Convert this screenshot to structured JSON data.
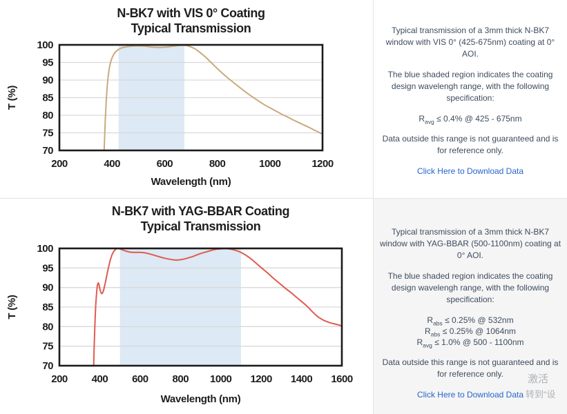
{
  "chart_data": [
    {
      "type": "line",
      "title": "N-BK7 with VIS 0° Coating",
      "subtitle": "Typical Transmission",
      "xlabel": "Wavelength (nm)",
      "ylabel": "T (%)",
      "xlim": [
        200,
        1200
      ],
      "ylim": [
        70,
        100
      ],
      "xticks": [
        200,
        400,
        600,
        800,
        1000,
        1200
      ],
      "yticks": [
        100,
        95,
        90,
        85,
        80,
        75,
        70
      ],
      "grid": "horizontal",
      "legend": "none",
      "line_color": "#c9a97c",
      "shaded_region": {
        "x0": 425,
        "x1": 675,
        "color": "#dde9f4",
        "label": "coating design wavelength range"
      },
      "series": [
        {
          "name": "Transmission",
          "points": [
            [
              362,
              55
            ],
            [
              366,
              62
            ],
            [
              370,
              70
            ],
            [
              374,
              78
            ],
            [
              378,
              84
            ],
            [
              382,
              88.5
            ],
            [
              386,
              91.5
            ],
            [
              390,
              93.5
            ],
            [
              395,
              95.2
            ],
            [
              400,
              96.3
            ],
            [
              408,
              97.5
            ],
            [
              416,
              98.2
            ],
            [
              425,
              98.7
            ],
            [
              435,
              99.1
            ],
            [
              450,
              99.4
            ],
            [
              470,
              99.6
            ],
            [
              490,
              99.7
            ],
            [
              510,
              99.7
            ],
            [
              530,
              99.6
            ],
            [
              550,
              99.4
            ],
            [
              570,
              99.3
            ],
            [
              590,
              99.3
            ],
            [
              610,
              99.4
            ],
            [
              630,
              99.6
            ],
            [
              650,
              99.8
            ],
            [
              668,
              99.9
            ],
            [
              685,
              99.8
            ],
            [
              700,
              99.4
            ],
            [
              715,
              98.9
            ],
            [
              730,
              98.1
            ],
            [
              745,
              97.2
            ],
            [
              760,
              96.2
            ],
            [
              775,
              95.1
            ],
            [
              790,
              94.0
            ],
            [
              805,
              92.9
            ],
            [
              820,
              91.9
            ],
            [
              835,
              90.9
            ],
            [
              850,
              90.0
            ],
            [
              870,
              88.8
            ],
            [
              890,
              87.6
            ],
            [
              910,
              86.5
            ],
            [
              930,
              85.4
            ],
            [
              950,
              84.4
            ],
            [
              970,
              83.4
            ],
            [
              990,
              82.5
            ],
            [
              1010,
              81.7
            ],
            [
              1030,
              80.9
            ],
            [
              1050,
              80.1
            ],
            [
              1070,
              79.4
            ],
            [
              1090,
              78.6
            ],
            [
              1110,
              77.9
            ],
            [
              1130,
              77.2
            ],
            [
              1150,
              76.5
            ],
            [
              1170,
              75.7
            ],
            [
              1185,
              75.2
            ],
            [
              1200,
              74.6
            ]
          ]
        }
      ]
    },
    {
      "type": "line",
      "title": "N-BK7 with YAG-BBAR Coating",
      "subtitle": "Typical Transmission",
      "xlabel": "Wavelength (nm)",
      "ylabel": "T (%)",
      "xlim": [
        200,
        1600
      ],
      "ylim": [
        70,
        100
      ],
      "xticks": [
        200,
        400,
        600,
        800,
        1000,
        1200,
        1400,
        1600
      ],
      "yticks": [
        100,
        95,
        90,
        85,
        80,
        75,
        70
      ],
      "grid": "horizontal",
      "legend": "none",
      "line_color": "#e05a4e",
      "shaded_region": {
        "x0": 500,
        "x1": 1100,
        "color": "#dde9f4",
        "label": "coating design wavelength range"
      },
      "series": [
        {
          "name": "Transmission",
          "points": [
            [
              364,
              58
            ],
            [
              368,
              66
            ],
            [
              372,
              74
            ],
            [
              376,
              80.5
            ],
            [
              380,
              85.5
            ],
            [
              384,
              88.5
            ],
            [
              388,
              90.5
            ],
            [
              392,
              91.2
            ],
            [
              396,
              90.8
            ],
            [
              400,
              89.8
            ],
            [
              405,
              88.8
            ],
            [
              410,
              88.4
            ],
            [
              415,
              88.7
            ],
            [
              420,
              89.5
            ],
            [
              428,
              91.3
            ],
            [
              436,
              93.3
            ],
            [
              444,
              95.3
            ],
            [
              452,
              97.0
            ],
            [
              460,
              98.3
            ],
            [
              470,
              99.3
            ],
            [
              480,
              99.8
            ],
            [
              490,
              100
            ],
            [
              500,
              99.9
            ],
            [
              515,
              99.6
            ],
            [
              530,
              99.3
            ],
            [
              545,
              99.1
            ],
            [
              560,
              99.0
            ],
            [
              580,
              99.0
            ],
            [
              600,
              99.0
            ],
            [
              620,
              98.9
            ],
            [
              640,
              98.7
            ],
            [
              660,
              98.4
            ],
            [
              680,
              98.1
            ],
            [
              700,
              97.8
            ],
            [
              720,
              97.5
            ],
            [
              740,
              97.3
            ],
            [
              760,
              97.1
            ],
            [
              780,
              97.0
            ],
            [
              800,
              97.1
            ],
            [
              820,
              97.3
            ],
            [
              840,
              97.6
            ],
            [
              860,
              97.9
            ],
            [
              880,
              98.3
            ],
            [
              900,
              98.7
            ],
            [
              920,
              99.0
            ],
            [
              940,
              99.3
            ],
            [
              960,
              99.6
            ],
            [
              980,
              99.8
            ],
            [
              1000,
              99.9
            ],
            [
              1020,
              100
            ],
            [
              1040,
              99.9
            ],
            [
              1060,
              99.7
            ],
            [
              1080,
              99.4
            ],
            [
              1100,
              99.0
            ],
            [
              1120,
              98.4
            ],
            [
              1140,
              97.7
            ],
            [
              1160,
              96.9
            ],
            [
              1180,
              96.0
            ],
            [
              1200,
              95.1
            ],
            [
              1230,
              93.8
            ],
            [
              1260,
              92.4
            ],
            [
              1290,
              91.1
            ],
            [
              1320,
              89.8
            ],
            [
              1350,
              88.6
            ],
            [
              1380,
              87.3
            ],
            [
              1410,
              86.0
            ],
            [
              1430,
              85.1
            ],
            [
              1450,
              84.0
            ],
            [
              1470,
              83.0
            ],
            [
              1490,
              82.2
            ],
            [
              1510,
              81.6
            ],
            [
              1540,
              81.0
            ],
            [
              1570,
              80.6
            ],
            [
              1600,
              80.2
            ]
          ]
        }
      ]
    }
  ],
  "panels": [
    {
      "p1": "Typical transmission of a 3mm thick N-BK7 window with VIS 0° (425-675nm) coating at 0° AOI.",
      "p2": "The blue shaded region indicates the coating design wavelengh range, with the following specification:",
      "specs": [
        {
          "base": "R",
          "sub": "avg",
          "rest": "≤ 0.4% @ 425 - 675nm"
        }
      ],
      "p3": "Data outside this range is not guaranteed and is for reference only.",
      "link": "Click Here to Download Data"
    },
    {
      "p1": "Typical transmission of a 3mm thick N-BK7 window with YAG-BBAR (500-1100nm) coating at 0° AOI.",
      "p2": "The blue shaded region indicates the coating design wavelengh range, with the following specification:",
      "specs": [
        {
          "base": "R",
          "sub": "abs",
          "rest": "≤ 0.25% @ 532nm"
        },
        {
          "base": "R",
          "sub": "abs",
          "rest": "≤ 0.25% @ 1064nm"
        },
        {
          "base": "R",
          "sub": "avg",
          "rest": "≤ 1.0% @ 500 - 1100nm"
        }
      ],
      "p3": "Data outside this range is not guaranteed and is for reference only.",
      "link": "Click Here to Download Data"
    }
  ],
  "watermark": {
    "line1": "激活",
    "line2": "转到“设"
  },
  "colors": {
    "vis_curve": "#c9a97c",
    "yag_curve": "#e05a4e",
    "shade_blue": "#dde9f4",
    "panel_text": "#3d4c5e",
    "link_blue": "#2565c8",
    "panel_bg_gray": "#f5f5f5"
  }
}
